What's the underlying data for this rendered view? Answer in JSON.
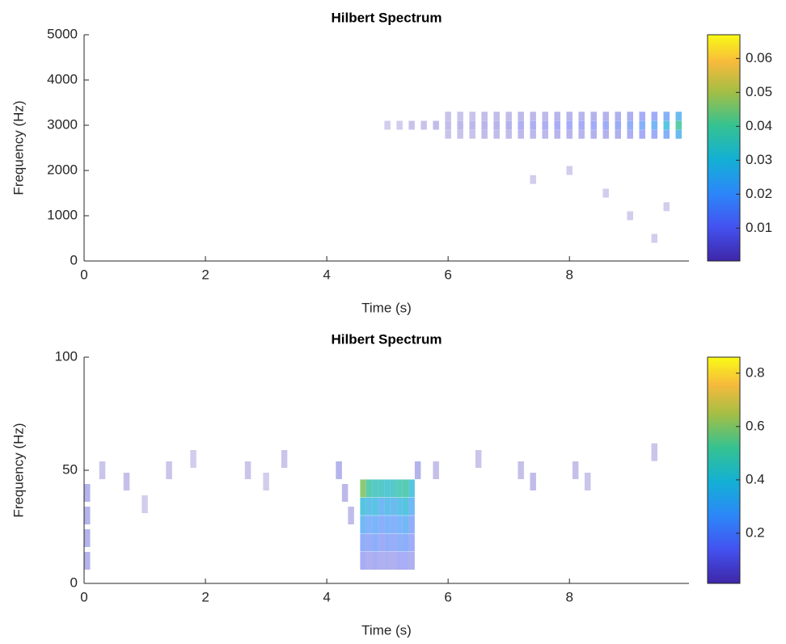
{
  "chart_data": [
    {
      "type": "heatmap",
      "title": "Hilbert Spectrum",
      "xlabel": "Time (s)",
      "ylabel": "Frequency (Hz)",
      "xlim": [
        0,
        9.97
      ],
      "ylim": [
        0,
        5000
      ],
      "xticks": [
        0,
        2,
        4,
        6,
        8
      ],
      "yticks": [
        0,
        1000,
        2000,
        3000,
        4000,
        5000
      ],
      "clim": [
        0.0003,
        0.067
      ],
      "cticks": [
        0.01,
        0.02,
        0.03,
        0.04,
        0.05,
        0.06
      ],
      "x": [
        5,
        5.2,
        5.4,
        5.6,
        5.8,
        6,
        6.2,
        6.4,
        6.6,
        6.8,
        7,
        7.2,
        7.4,
        7.6,
        7.8,
        8,
        8.2,
        8.4,
        8.6,
        8.8,
        9,
        9.2,
        9.4,
        9.6,
        9.8,
        6,
        6.2,
        6.4,
        6.6,
        6.8,
        7,
        7.2,
        7.4,
        7.6,
        7.8,
        8,
        8.2,
        8.4,
        8.6,
        8.8,
        9,
        9.2,
        9.4,
        9.6,
        9.8,
        6,
        6.2,
        6.4,
        6.6,
        6.8,
        7,
        7.2,
        7.4,
        7.6,
        7.8,
        8,
        8.2,
        8.4,
        8.6,
        8.8,
        9,
        9.2,
        9.4,
        9.6,
        9.8,
        8.6,
        9,
        9.4,
        9.6,
        8,
        7.4
      ],
      "y": [
        3000,
        3000,
        3000,
        3000,
        3000,
        3000,
        3000,
        3000,
        3000,
        3000,
        3000,
        3000,
        3000,
        3000,
        3000,
        3000,
        3000,
        3000,
        3000,
        3000,
        3000,
        3000,
        3000,
        3000,
        3000,
        2800,
        2800,
        2800,
        2800,
        2800,
        2800,
        2800,
        2800,
        2800,
        2800,
        2800,
        2800,
        2800,
        2800,
        2800,
        2800,
        2800,
        2800,
        2800,
        2800,
        3200,
        3200,
        3200,
        3200,
        3200,
        3200,
        3200,
        3200,
        3200,
        3200,
        3200,
        3200,
        3200,
        3200,
        3200,
        3200,
        3200,
        3200,
        3200,
        3200,
        1500,
        1000,
        500,
        1200,
        2000,
        1800
      ],
      "values": [
        0.001,
        0.001,
        0.002,
        0.002,
        0.003,
        0.003,
        0.004,
        0.004,
        0.005,
        0.005,
        0.006,
        0.007,
        0.008,
        0.008,
        0.009,
        0.01,
        0.01,
        0.011,
        0.012,
        0.013,
        0.015,
        0.018,
        0.022,
        0.03,
        0.04,
        0.002,
        0.002,
        0.002,
        0.003,
        0.003,
        0.003,
        0.004,
        0.004,
        0.004,
        0.005,
        0.005,
        0.005,
        0.006,
        0.006,
        0.007,
        0.008,
        0.01,
        0.012,
        0.018,
        0.025,
        0.002,
        0.002,
        0.002,
        0.003,
        0.003,
        0.003,
        0.004,
        0.004,
        0.004,
        0.005,
        0.005,
        0.005,
        0.006,
        0.006,
        0.007,
        0.008,
        0.01,
        0.012,
        0.018,
        0.025,
        0.001,
        0.001,
        0.001,
        0.001,
        0.001,
        0.001
      ]
    },
    {
      "type": "heatmap",
      "title": "Hilbert Spectrum",
      "xlabel": "Time (s)",
      "ylabel": "Frequency (Hz)",
      "xlim": [
        0,
        9.97
      ],
      "ylim": [
        0,
        100
      ],
      "xticks": [
        0,
        2,
        4,
        6,
        8
      ],
      "yticks": [
        0,
        50,
        100
      ],
      "clim": [
        0.012,
        0.86
      ],
      "cticks": [
        0.2,
        0.4,
        0.6,
        0.8
      ],
      "x": [
        4.6,
        4.7,
        4.8,
        4.9,
        5,
        5.1,
        5.2,
        5.3,
        5.4,
        4.6,
        4.7,
        4.8,
        4.9,
        5,
        5.1,
        5.2,
        5.3,
        5.4,
        4.6,
        4.7,
        4.8,
        4.9,
        5,
        5.1,
        5.2,
        5.3,
        5.4,
        4.6,
        4.7,
        4.8,
        4.9,
        5,
        5.1,
        5.2,
        5.3,
        5.4,
        4.6,
        4.7,
        4.8,
        4.9,
        5,
        5.1,
        5.2,
        5.3,
        5.4,
        0,
        0,
        0,
        0,
        0.3,
        0.7,
        1,
        1.4,
        1.8,
        2.7,
        3,
        3.3,
        4.2,
        4.3,
        4.4,
        5.5,
        5.8,
        6.5,
        7.2,
        7.4,
        8.1,
        8.3,
        9.4
      ],
      "y": [
        42,
        42,
        42,
        42,
        42,
        42,
        42,
        42,
        42,
        34,
        34,
        34,
        34,
        34,
        34,
        34,
        34,
        34,
        26,
        26,
        26,
        26,
        26,
        26,
        26,
        26,
        26,
        18,
        18,
        18,
        18,
        18,
        18,
        18,
        18,
        18,
        10,
        10,
        10,
        10,
        10,
        10,
        10,
        10,
        10,
        10,
        20,
        30,
        40,
        50,
        45,
        35,
        50,
        55,
        50,
        45,
        55,
        50,
        40,
        30,
        50,
        50,
        55,
        50,
        45,
        50,
        45,
        58
      ],
      "values": [
        0.6,
        0.5,
        0.45,
        0.45,
        0.42,
        0.45,
        0.48,
        0.5,
        0.4,
        0.4,
        0.35,
        0.38,
        0.3,
        0.35,
        0.32,
        0.36,
        0.4,
        0.3,
        0.3,
        0.25,
        0.28,
        0.22,
        0.26,
        0.24,
        0.27,
        0.3,
        0.2,
        0.2,
        0.18,
        0.22,
        0.16,
        0.2,
        0.18,
        0.21,
        0.22,
        0.15,
        0.12,
        0.1,
        0.12,
        0.1,
        0.11,
        0.1,
        0.12,
        0.13,
        0.1,
        0.08,
        0.08,
        0.08,
        0.08,
        0.03,
        0.04,
        0.02,
        0.03,
        0.02,
        0.03,
        0.02,
        0.03,
        0.08,
        0.06,
        0.05,
        0.08,
        0.04,
        0.03,
        0.04,
        0.05,
        0.04,
        0.03,
        0.03
      ]
    }
  ]
}
